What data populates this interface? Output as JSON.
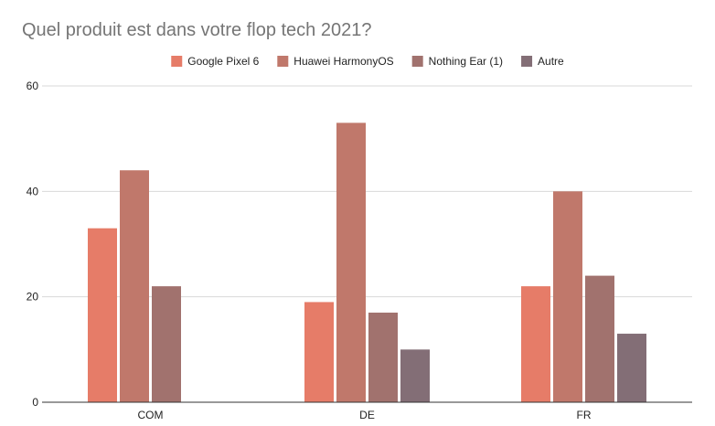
{
  "chart_data": {
    "type": "bar",
    "title": "Quel produit est dans votre flop tech 2021?",
    "xlabel": "",
    "ylabel": "",
    "categories": [
      "COM",
      "DE",
      "FR"
    ],
    "series": [
      {
        "name": "Google Pixel 6",
        "color": "#e67c68",
        "values": [
          33,
          19,
          22
        ]
      },
      {
        "name": "Huawei HarmonyOS",
        "color": "#c0786b",
        "values": [
          44,
          53,
          40
        ]
      },
      {
        "name": "Nothing Ear (1)",
        "color": "#a1726e",
        "values": [
          22,
          17,
          24
        ]
      },
      {
        "name": "Autre",
        "color": "#836e76",
        "values": [
          null,
          10,
          13
        ]
      }
    ],
    "ylim": [
      0,
      60
    ],
    "yticks": [
      0,
      20,
      40,
      60
    ],
    "grid": true,
    "legend_position": "top"
  }
}
